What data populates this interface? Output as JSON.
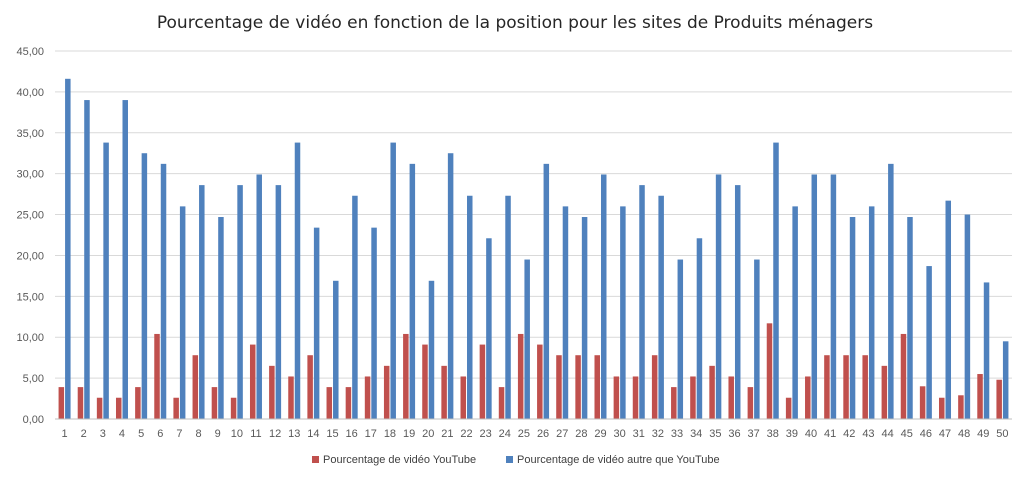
{
  "chart_data": {
    "type": "bar",
    "title": "Pourcentage de vidéo en fonction de la position pour les sites de Produits ménagers",
    "xlabel": "",
    "ylabel": "",
    "ylim": [
      0,
      45
    ],
    "y_ticks": [
      "0,00",
      "5,00",
      "10,00",
      "15,00",
      "20,00",
      "25,00",
      "30,00",
      "35,00",
      "40,00",
      "45,00"
    ],
    "y_tick_values": [
      0,
      5,
      10,
      15,
      20,
      25,
      30,
      35,
      40,
      45
    ],
    "grid": true,
    "legend_position": "bottom",
    "categories": [
      "1",
      "2",
      "3",
      "4",
      "5",
      "6",
      "7",
      "8",
      "9",
      "10",
      "11",
      "12",
      "13",
      "14",
      "15",
      "16",
      "17",
      "18",
      "19",
      "20",
      "21",
      "22",
      "23",
      "24",
      "25",
      "26",
      "27",
      "28",
      "29",
      "30",
      "31",
      "32",
      "33",
      "34",
      "35",
      "36",
      "37",
      "38",
      "39",
      "40",
      "41",
      "42",
      "43",
      "44",
      "45",
      "46",
      "47",
      "48",
      "49",
      "50"
    ],
    "series": [
      {
        "name": "Pourcentage de vidéo YouTube",
        "color": "#c0504d",
        "values": [
          3.9,
          3.9,
          2.6,
          2.6,
          3.9,
          10.4,
          2.6,
          7.8,
          3.9,
          2.6,
          9.1,
          6.5,
          5.2,
          7.8,
          3.9,
          3.9,
          5.2,
          6.5,
          10.4,
          9.1,
          6.5,
          5.2,
          9.1,
          3.9,
          10.4,
          9.1,
          7.8,
          7.8,
          7.8,
          5.2,
          5.2,
          7.8,
          3.9,
          5.2,
          6.5,
          5.2,
          3.9,
          11.7,
          2.6,
          5.2,
          7.8,
          7.8,
          7.8,
          6.5,
          10.4,
          4.0,
          2.6,
          2.9,
          5.5,
          4.8
        ]
      },
      {
        "name": "Pourcentage de vidéo autre que YouTube",
        "color": "#4f81bd",
        "values": [
          41.6,
          39.0,
          33.8,
          39.0,
          32.5,
          31.2,
          26.0,
          28.6,
          24.7,
          28.6,
          29.9,
          28.6,
          33.8,
          23.4,
          16.9,
          27.3,
          23.4,
          33.8,
          31.2,
          16.9,
          32.5,
          27.3,
          22.1,
          27.3,
          19.5,
          31.2,
          26.0,
          24.7,
          29.9,
          26.0,
          28.6,
          27.3,
          19.5,
          22.1,
          29.9,
          28.6,
          19.5,
          33.8,
          26.0,
          29.9,
          29.9,
          24.7,
          26.0,
          31.2,
          24.7,
          18.7,
          26.7,
          25.0,
          16.7,
          9.5
        ]
      }
    ]
  }
}
